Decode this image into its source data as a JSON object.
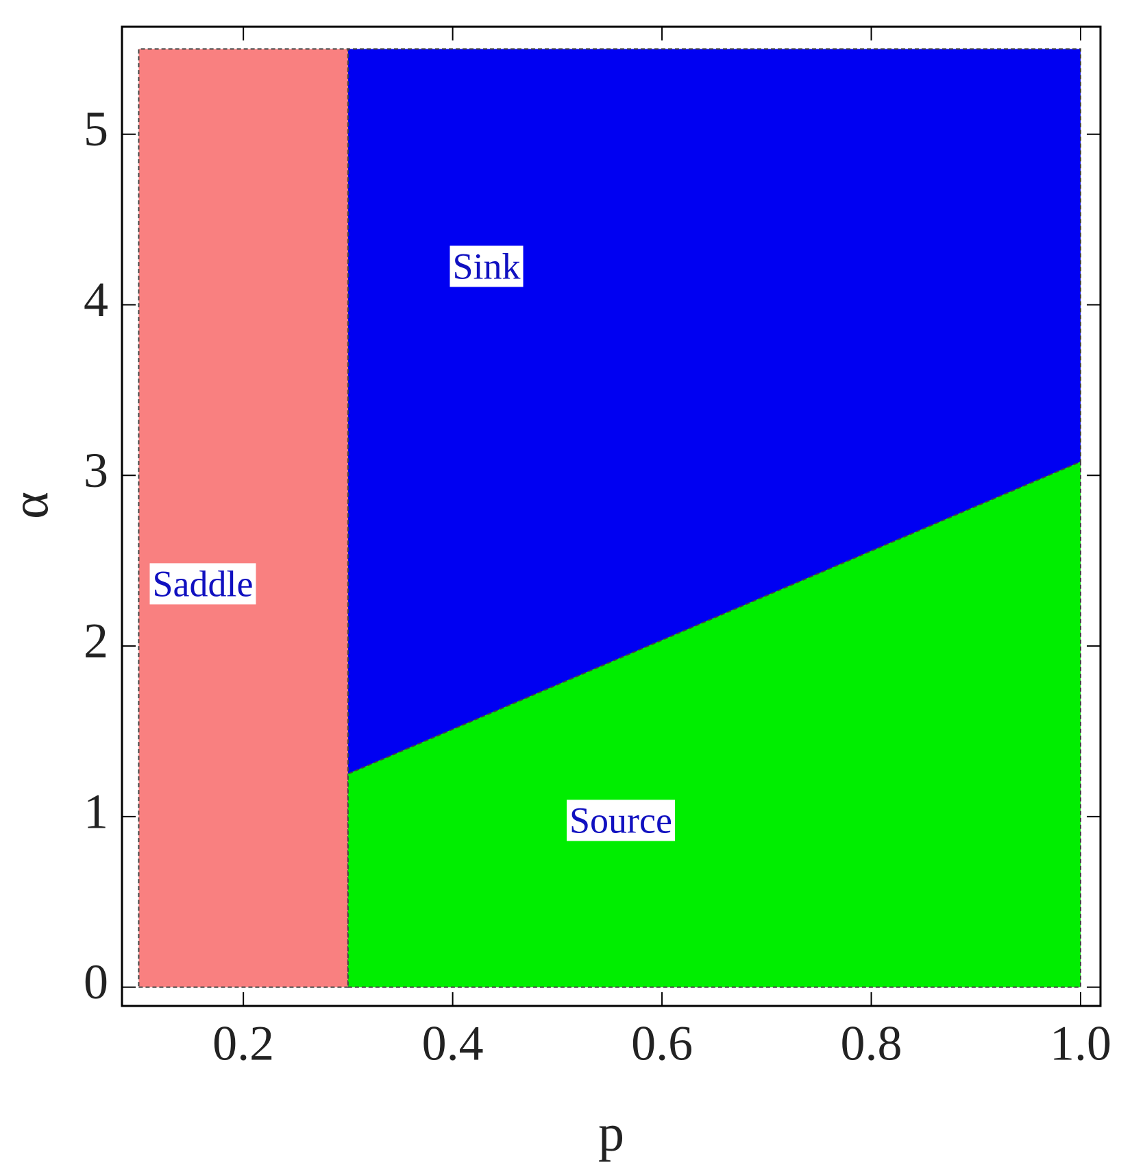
{
  "chart_data": {
    "type": "region",
    "x_label": "p",
    "y_label": "α",
    "xlim": [
      0.084,
      1.019
    ],
    "ylim": [
      -0.11,
      5.63
    ],
    "xticks": [
      0.2,
      0.4,
      0.6,
      0.8,
      {
        "value": 1,
        "label": "1.0"
      }
    ],
    "yticks": [
      0,
      1,
      2,
      3,
      4,
      5
    ],
    "series": [
      {
        "name": "Saddle",
        "color": "#f98080",
        "x": [
          0.1,
          0.3,
          0.3,
          0.1
        ],
        "y": [
          0,
          0,
          5.5,
          5.5
        ]
      },
      {
        "name": "Sink",
        "color": "#0000f2",
        "x": [
          0.3,
          1.0,
          1.0,
          0.3
        ],
        "y": [
          1.25,
          3.08,
          5.5,
          5.5
        ]
      },
      {
        "name": "Source",
        "color": "#00ee00",
        "x": [
          0.3,
          1.0,
          1.0,
          0.3
        ],
        "y": [
          0,
          0,
          3.08,
          1.25
        ]
      }
    ]
  }
}
